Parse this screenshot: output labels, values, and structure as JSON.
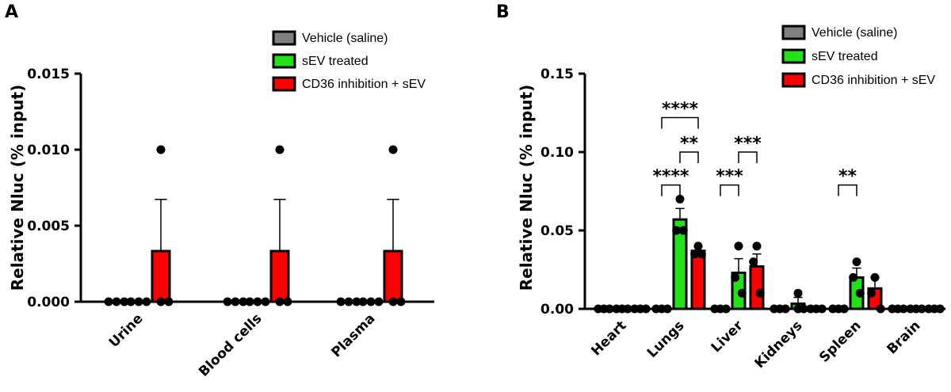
{
  "chart_data": [
    {
      "type": "bar",
      "panel": "A",
      "ylabel": "Relative Nluc (% input)",
      "ylim": [
        0,
        0.015
      ],
      "yticks": [
        "0.000",
        "0.005",
        "0.010",
        "0.015"
      ],
      "categories": [
        "Urine",
        "Blood cells",
        "Plasma"
      ],
      "legend_position": "top-right",
      "series": [
        {
          "name": "Vehicle (saline)",
          "color": "#808080",
          "values": [
            0,
            0,
            0
          ],
          "errors": [
            0,
            0,
            0
          ],
          "points": [
            [
              0,
              0,
              0
            ],
            [
              0,
              0,
              0
            ],
            [
              0,
              0,
              0
            ]
          ]
        },
        {
          "name": "sEV treated",
          "color": "#22e01a",
          "values": [
            0,
            0,
            0
          ],
          "errors": [
            0,
            0,
            0
          ],
          "points": [
            [
              0,
              0,
              0
            ],
            [
              0,
              0,
              0
            ],
            [
              0,
              0,
              0
            ]
          ]
        },
        {
          "name": "CD36 inhibition + sEV",
          "color": "#ff0000",
          "values": [
            0.00333,
            0.00333,
            0.00333
          ],
          "errors": [
            0.0034,
            0.0034,
            0.0034
          ],
          "points": [
            [
              0.01,
              0,
              0
            ],
            [
              0.01,
              0,
              0
            ],
            [
              0.01,
              0,
              0
            ]
          ]
        }
      ],
      "significance": []
    },
    {
      "type": "bar",
      "panel": "B",
      "ylabel": "Relative Nluc (% input)",
      "ylim": [
        0,
        0.15
      ],
      "yticks": [
        "0.00",
        "0.05",
        "0.10",
        "0.15"
      ],
      "categories": [
        "Heart",
        "Lungs",
        "Liver",
        "Kidneys",
        "Spleen",
        "Brain"
      ],
      "legend_position": "top-right",
      "series": [
        {
          "name": "Vehicle (saline)",
          "color": "#808080",
          "values": [
            0,
            0,
            0,
            0,
            0,
            0
          ],
          "errors": [
            0,
            0,
            0,
            0,
            0,
            0
          ],
          "points": [
            [
              0,
              0,
              0
            ],
            [
              0,
              0,
              0
            ],
            [
              0,
              0,
              0
            ],
            [
              0,
              0,
              0
            ],
            [
              0,
              0,
              0
            ],
            [
              0,
              0,
              0
            ]
          ]
        },
        {
          "name": "sEV treated",
          "color": "#22e01a",
          "values": [
            0,
            0.057,
            0.023,
            0.0033,
            0.02,
            0
          ],
          "errors": [
            0,
            0.007,
            0.009,
            0.004,
            0.006,
            0
          ],
          "points": [
            [
              0,
              0,
              0
            ],
            [
              0.07,
              0.05,
              0.05
            ],
            [
              0.04,
              0.02,
              0.01
            ],
            [
              0.01,
              0,
              0
            ],
            [
              0.03,
              0.02,
              0.01
            ],
            [
              0,
              0,
              0
            ]
          ]
        },
        {
          "name": "CD36 inhibition + sEV",
          "color": "#ff0000",
          "values": [
            0,
            0.037,
            0.027,
            0,
            0.013,
            0
          ],
          "errors": [
            0,
            0.003,
            0.008,
            0,
            0.007,
            0
          ],
          "points": [
            [
              0,
              0,
              0
            ],
            [
              0.04,
              0.035,
              0.035
            ],
            [
              0.04,
              0.03,
              0.01
            ],
            [
              0,
              0,
              0
            ],
            [
              0.02,
              0.01,
              0
            ],
            [
              0,
              0,
              0
            ]
          ]
        }
      ],
      "significance": [
        {
          "category": 1,
          "from": 0,
          "to": 1,
          "label": "****",
          "y": 0.079
        },
        {
          "category": 1,
          "from": 1,
          "to": 2,
          "label": "**",
          "y": 0.1
        },
        {
          "category": 1,
          "from": 0,
          "to": 2,
          "label": "****",
          "y": 0.122
        },
        {
          "category": 2,
          "from": 0,
          "to": 1,
          "label": "***",
          "y": 0.079
        },
        {
          "category": 2,
          "from": 1,
          "to": 2,
          "label": "***",
          "y": 0.1
        },
        {
          "category": 4,
          "from": 0,
          "to": 1,
          "label": "**",
          "y": 0.079
        }
      ]
    }
  ]
}
